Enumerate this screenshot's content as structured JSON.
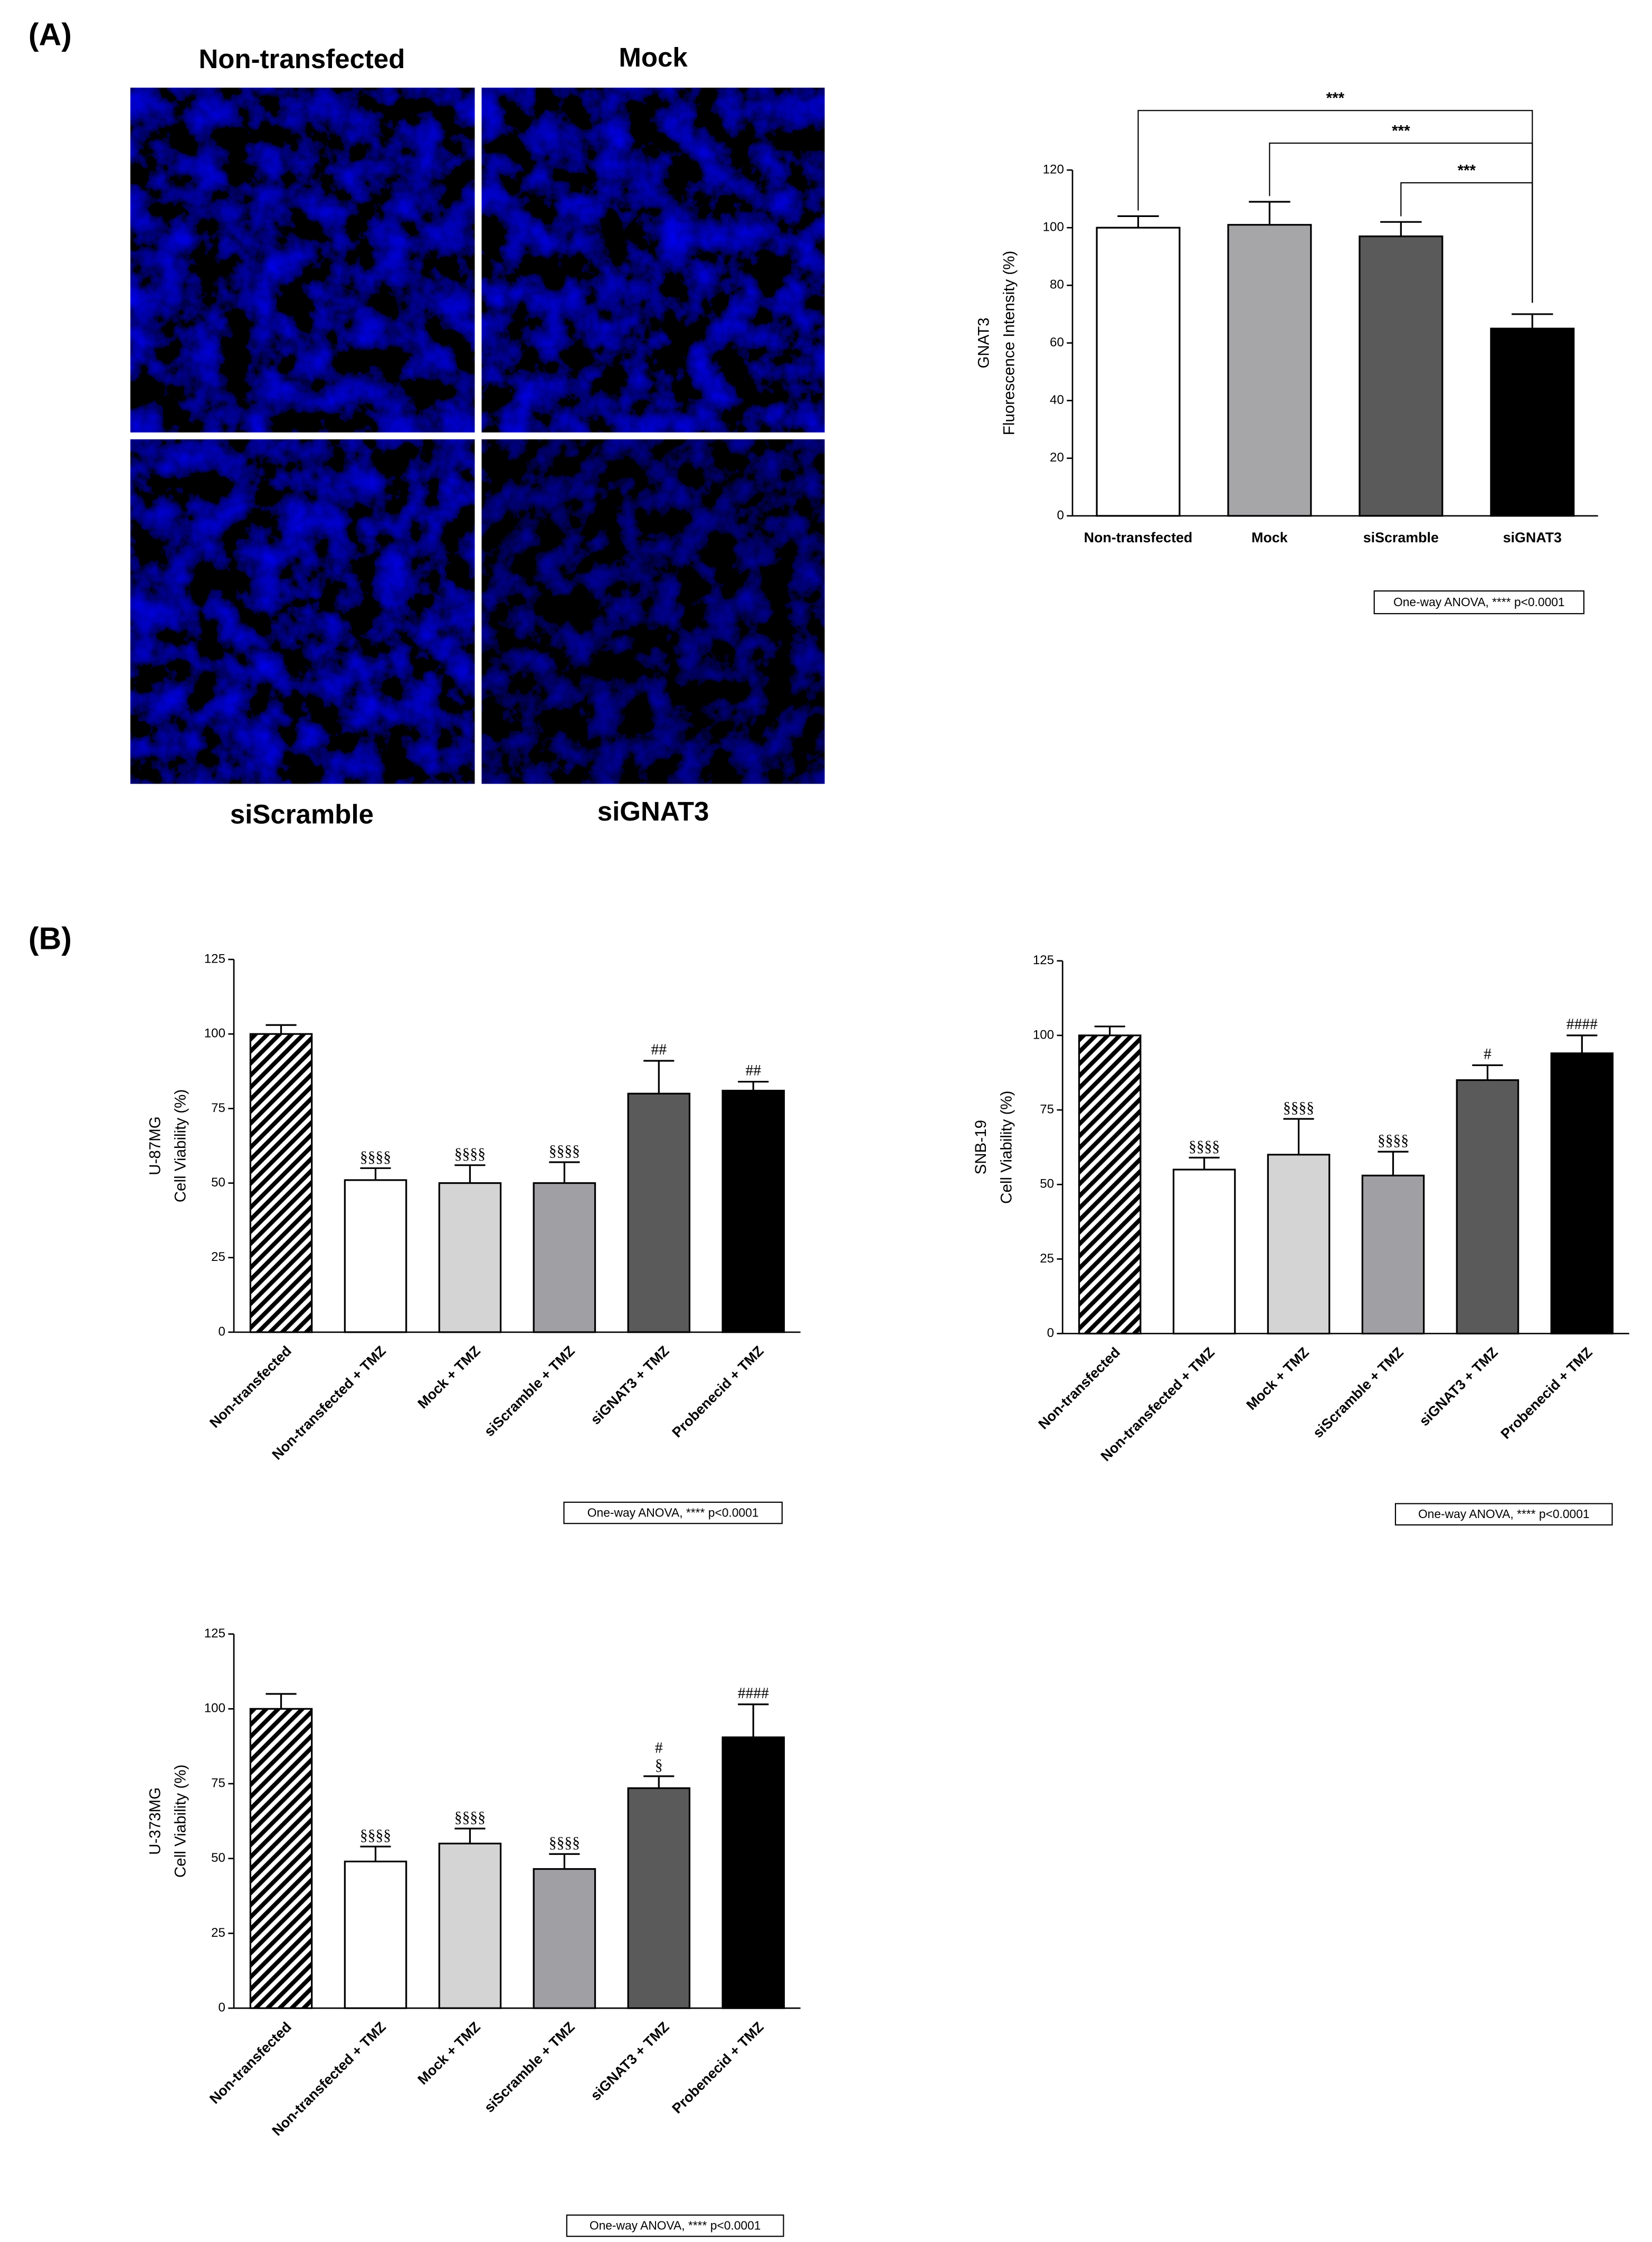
{
  "panel_labels": [
    "(A)",
    "(B)"
  ],
  "micrographs": [
    "Non-transfected",
    "Mock",
    "siScramble",
    "siGNAT3"
  ],
  "chart_data": [
    {
      "type": "bar",
      "y_label": [
        "GNAT3",
        "Fluorescence Intensity (%)"
      ],
      "categories": [
        "Non-transfected",
        "Mock",
        "siScramble",
        "siGNAT3"
      ],
      "values": [
        100,
        101,
        97,
        65
      ],
      "errors": [
        4,
        8,
        5,
        5
      ],
      "fills": [
        "#ffffff",
        "#a6a6a8",
        "#5a5a5a",
        "#000000"
      ],
      "ylim": [
        0,
        120
      ],
      "yticks": [
        0,
        20,
        40,
        60,
        80,
        100,
        120
      ],
      "significance": [
        "***",
        "***",
        "***"
      ],
      "note": "One-way ANOVA, **** p<0.0001"
    },
    {
      "type": "bar",
      "y_label": [
        "U-87MG",
        "Cell Viability (%)"
      ],
      "categories": [
        "Non-transfected",
        "Non-transfected + TMZ",
        "Mock + TMZ",
        "siScramble + TMZ",
        "siGNAT3 + TMZ",
        "Probenecid + TMZ"
      ],
      "values": [
        100,
        51,
        50,
        50,
        80,
        81
      ],
      "errors": [
        3,
        4,
        6,
        7,
        11,
        3
      ],
      "fills": [
        "hatched",
        "#ffffff",
        "#d4d4d4",
        "#a0a0a4",
        "#5a5a5a",
        "#000000"
      ],
      "annotations": [
        null,
        [
          "§§§§"
        ],
        [
          "§§§§"
        ],
        [
          "§§§§"
        ],
        [
          "##"
        ],
        [
          "##"
        ]
      ],
      "ylim": [
        0,
        125
      ],
      "yticks": [
        0,
        25,
        50,
        75,
        100,
        125
      ],
      "note": "One-way ANOVA, **** p<0.0001"
    },
    {
      "type": "bar",
      "y_label": [
        "SNB-19",
        "Cell Viability (%)"
      ],
      "categories": [
        "Non-transfected",
        "Non-transfected + TMZ",
        "Mock + TMZ",
        "siScramble + TMZ",
        "siGNAT3 + TMZ",
        "Probenecid + TMZ"
      ],
      "values": [
        100,
        55,
        60,
        53,
        85,
        94
      ],
      "errors": [
        3,
        4,
        12,
        8,
        5,
        6
      ],
      "fills": [
        "hatched",
        "#ffffff",
        "#d4d4d4",
        "#a0a0a4",
        "#5a5a5a",
        "#000000"
      ],
      "annotations": [
        null,
        [
          "§§§§"
        ],
        [
          "§§§§"
        ],
        [
          "§§§§"
        ],
        [
          "#"
        ],
        [
          "####"
        ]
      ],
      "ylim": [
        0,
        125
      ],
      "yticks": [
        0,
        25,
        50,
        75,
        100,
        125
      ],
      "note": "One-way ANOVA, **** p<0.0001"
    },
    {
      "type": "bar",
      "y_label": [
        "U-373MG",
        "Cell Viability (%)"
      ],
      "categories": [
        "Non-transfected",
        "Non-transfected + TMZ",
        "Mock + TMZ",
        "siScramble + TMZ",
        "siGNAT3 + TMZ",
        "Probenecid + TMZ"
      ],
      "values": [
        100,
        49,
        55,
        46.5,
        73.5,
        90.5
      ],
      "errors": [
        5,
        5,
        5,
        5,
        4,
        11
      ],
      "fills": [
        "hatched",
        "#ffffff",
        "#d4d4d4",
        "#a0a0a4",
        "#5a5a5a",
        "#000000"
      ],
      "annotations": [
        null,
        [
          "§§§§"
        ],
        [
          "§§§§"
        ],
        [
          "§§§§"
        ],
        [
          "#",
          "§"
        ],
        [
          "####"
        ]
      ],
      "ylim": [
        0,
        125
      ],
      "yticks": [
        0,
        25,
        50,
        75,
        100,
        125
      ],
      "note": "One-way ANOVA, **** p<0.0001"
    }
  ]
}
